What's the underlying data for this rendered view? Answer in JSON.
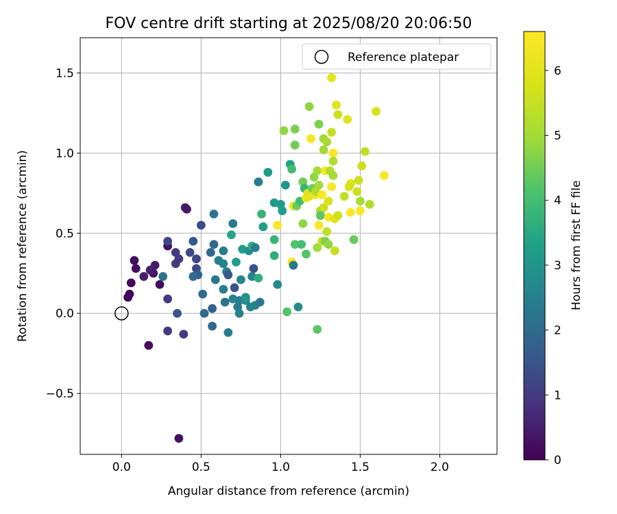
{
  "chart_data": {
    "type": "scatter",
    "title": "FOV centre drift starting at 2025/08/20 20:06:50",
    "xlabel": "Angular distance from reference (arcmin)",
    "ylabel": "Rotation from reference (arcmin)",
    "xlim": [
      -0.26,
      2.36
    ],
    "ylim": [
      -0.88,
      1.72
    ],
    "xticks": [
      0.0,
      0.5,
      1.0,
      1.5,
      2.0
    ],
    "xtick_labels": [
      "0.0",
      "0.5",
      "1.0",
      "1.5",
      "2.0"
    ],
    "yticks": [
      -0.5,
      0.0,
      0.5,
      1.0,
      1.5
    ],
    "ytick_labels": [
      "−0.5",
      "0.0",
      "0.5",
      "1.0",
      "1.5"
    ],
    "grid": true,
    "legend": {
      "placement": "upper right",
      "entries": [
        "Reference platepar"
      ]
    },
    "reference_point": {
      "x": 0.0,
      "y": 0.0
    },
    "colorbar": {
      "label": "Hours from first FF file",
      "range": [
        0,
        6.6
      ],
      "ticks": [
        0,
        1,
        2,
        3,
        4,
        5,
        6
      ],
      "tick_labels": [
        "0",
        "1",
        "2",
        "3",
        "4",
        "5",
        "6"
      ],
      "colormap": "viridis"
    },
    "series": [
      {
        "values": [
          [
            0.04,
            0.1,
            0.1
          ],
          [
            0.05,
            0.12,
            0.1
          ],
          [
            0.06,
            0.19,
            0.1
          ],
          [
            0.09,
            0.28,
            0.2
          ],
          [
            0.08,
            0.33,
            0.2
          ],
          [
            0.17,
            -0.2,
            0.2
          ],
          [
            0.24,
            0.18,
            0.2
          ],
          [
            0.2,
            0.25,
            0.3
          ],
          [
            0.21,
            0.3,
            0.4
          ],
          [
            0.18,
            0.27,
            0.5
          ],
          [
            0.14,
            0.23,
            0.5
          ],
          [
            0.29,
            0.42,
            0.3
          ],
          [
            0.36,
            -0.78,
            0.3
          ],
          [
            0.4,
            0.66,
            0.5
          ],
          [
            0.41,
            0.65,
            0.4
          ],
          [
            0.29,
            0.09,
            1.0
          ],
          [
            0.29,
            -0.11,
            1.0
          ],
          [
            0.34,
            0.31,
            1.0
          ],
          [
            0.34,
            0.38,
            1.0
          ],
          [
            0.36,
            0.34,
            1.0
          ],
          [
            0.29,
            0.45,
            1.2
          ],
          [
            0.39,
            -0.13,
            1.0
          ],
          [
            0.47,
            0.34,
            1.2
          ],
          [
            0.47,
            0.28,
            1.3
          ],
          [
            0.45,
            0.45,
            1.6
          ],
          [
            0.48,
            0.24,
            1.8
          ],
          [
            0.5,
            0.55,
            1.3
          ],
          [
            0.35,
            0.0,
            1.5
          ],
          [
            0.43,
            0.38,
            1.3
          ],
          [
            0.26,
            0.23,
            2.2
          ],
          [
            0.45,
            0.23,
            2.0
          ],
          [
            0.51,
            0.12,
            2.0
          ],
          [
            0.52,
            0.0,
            2.0
          ],
          [
            0.56,
            0.38,
            1.9
          ],
          [
            0.57,
            -0.08,
            1.9
          ],
          [
            0.57,
            0.03,
            1.8
          ],
          [
            0.58,
            0.43,
            1.9
          ],
          [
            0.58,
            0.62,
            2.2
          ],
          [
            0.59,
            0.21,
            2.3
          ],
          [
            0.61,
            0.33,
            2.5
          ],
          [
            0.64,
            0.31,
            2.6
          ],
          [
            0.64,
            0.39,
            2.4
          ],
          [
            0.64,
            0.15,
            2.4
          ],
          [
            0.65,
            0.07,
            2.2
          ],
          [
            0.66,
            0.26,
            2.5
          ],
          [
            0.67,
            0.24,
            1.6
          ],
          [
            0.67,
            -0.12,
            2.4
          ],
          [
            0.69,
            0.49,
            3.4
          ],
          [
            0.7,
            0.09,
            2.6
          ],
          [
            0.7,
            0.56,
            2.4
          ],
          [
            0.71,
            0.16,
            1.5
          ],
          [
            0.72,
            0.32,
            3.2
          ],
          [
            0.73,
            0.04,
            2.4
          ],
          [
            0.74,
            0.0,
            2.6
          ],
          [
            0.74,
            0.08,
            2.4
          ],
          [
            0.75,
            0.21,
            2.6
          ],
          [
            0.76,
            0.4,
            3.2
          ],
          [
            0.78,
            0.08,
            2.8
          ],
          [
            0.78,
            0.1,
            3.0
          ],
          [
            0.8,
            0.39,
            2.8
          ],
          [
            0.81,
            0.04,
            2.5
          ],
          [
            0.82,
            0.42,
            3.6
          ],
          [
            0.82,
            0.23,
            2.6
          ],
          [
            0.83,
            0.28,
            1.5
          ],
          [
            0.84,
            0.41,
            2.4
          ],
          [
            0.84,
            0.05,
            2.6
          ],
          [
            0.86,
            0.22,
            3.6
          ],
          [
            0.87,
            0.07,
            2.3
          ],
          [
            0.86,
            0.82,
            2.4
          ],
          [
            0.88,
            0.62,
            3.8
          ],
          [
            0.89,
            0.54,
            3.3
          ],
          [
            0.92,
            0.88,
            3.2
          ],
          [
            0.96,
            0.69,
            3.1
          ],
          [
            0.96,
            0.46,
            3.8
          ],
          [
            0.96,
            0.36,
            3.6
          ],
          [
            0.98,
            0.18,
            2.8
          ],
          [
            0.98,
            0.55,
            6.5
          ],
          [
            1.0,
            0.68,
            3.1
          ],
          [
            1.01,
            0.64,
            3.2
          ],
          [
            1.02,
            1.14,
            4.8
          ],
          [
            1.03,
            0.8,
            3.0
          ],
          [
            1.04,
            0.01,
            4.2
          ],
          [
            1.06,
            0.93,
            3.3
          ],
          [
            1.07,
            0.9,
            4.0
          ],
          [
            1.08,
            0.67,
            6.4
          ],
          [
            1.07,
            0.32,
            6.4
          ],
          [
            1.08,
            0.3,
            2.3
          ],
          [
            1.09,
            1.05,
            4.5
          ],
          [
            1.09,
            1.15,
            4.6
          ],
          [
            1.09,
            0.43,
            4.2
          ],
          [
            1.1,
            0.67,
            4.5
          ],
          [
            1.11,
            0.04,
            2.8
          ],
          [
            1.12,
            0.7,
            4.0
          ],
          [
            1.13,
            0.43,
            4.0
          ],
          [
            1.14,
            0.82,
            4.5
          ],
          [
            1.14,
            0.56,
            4.8
          ],
          [
            1.15,
            0.78,
            3.8
          ],
          [
            1.16,
            0.37,
            4.2
          ],
          [
            1.16,
            0.72,
            6.2
          ],
          [
            1.17,
            0.75,
            5.8
          ],
          [
            1.18,
            0.73,
            6.0
          ],
          [
            1.18,
            1.29,
            4.8
          ],
          [
            1.19,
            1.09,
            6.5
          ],
          [
            1.2,
            0.78,
            4.5
          ],
          [
            1.21,
            0.85,
            4.8
          ],
          [
            1.22,
            0.74,
            6.4
          ],
          [
            1.22,
            0.76,
            5.2
          ],
          [
            1.23,
            0.89,
            5.0
          ],
          [
            1.23,
            -0.1,
            4.3
          ],
          [
            1.23,
            0.41,
            5.0
          ],
          [
            1.24,
            0.55,
            6.5
          ],
          [
            1.24,
            0.8,
            5.0
          ],
          [
            1.24,
            1.18,
            4.6
          ],
          [
            1.25,
            0.64,
            5.1
          ],
          [
            1.25,
            0.61,
            4.3
          ],
          [
            1.26,
            0.45,
            5.5
          ],
          [
            1.26,
            0.74,
            6.5
          ],
          [
            1.27,
            1.09,
            5.0
          ],
          [
            1.27,
            1.02,
            5.0
          ],
          [
            1.27,
            0.66,
            5.6
          ],
          [
            1.28,
            0.89,
            6.5
          ],
          [
            1.28,
            0.45,
            4.6
          ],
          [
            1.29,
            0.51,
            5.4
          ],
          [
            1.29,
            1.07,
            5.1
          ],
          [
            1.3,
            0.6,
            6.5
          ],
          [
            1.3,
            0.7,
            5.8
          ],
          [
            1.3,
            0.43,
            4.8
          ],
          [
            1.31,
            0.89,
            5.2
          ],
          [
            1.32,
            1.13,
            5.5
          ],
          [
            1.32,
            0.79,
            6.5
          ],
          [
            1.32,
            1.47,
            6.0
          ],
          [
            1.33,
            1.0,
            6.5
          ],
          [
            1.33,
            0.95,
            5.2
          ],
          [
            1.33,
            0.86,
            5.0
          ],
          [
            1.34,
            0.59,
            6.0
          ],
          [
            1.34,
            0.39,
            5.5
          ],
          [
            1.35,
            1.3,
            6.0
          ],
          [
            1.36,
            1.24,
            5.6
          ],
          [
            1.36,
            0.61,
            5.6
          ],
          [
            1.4,
            0.73,
            5.4
          ],
          [
            1.42,
            1.21,
            6.0
          ],
          [
            1.43,
            0.79,
            5.8
          ],
          [
            1.44,
            0.63,
            6.5
          ],
          [
            1.44,
            0.81,
            5.8
          ],
          [
            1.46,
            0.46,
            4.4
          ],
          [
            1.48,
            0.76,
            5.6
          ],
          [
            1.49,
            0.83,
            5.6
          ],
          [
            1.5,
            0.7,
            5.1
          ],
          [
            1.5,
            0.64,
            6.5
          ],
          [
            1.51,
            0.92,
            5.6
          ],
          [
            1.53,
            1.01,
            5.4
          ],
          [
            1.56,
            0.68,
            5.2
          ],
          [
            1.6,
            1.26,
            5.8
          ],
          [
            1.65,
            0.86,
            6.4
          ]
        ]
      }
    ]
  }
}
